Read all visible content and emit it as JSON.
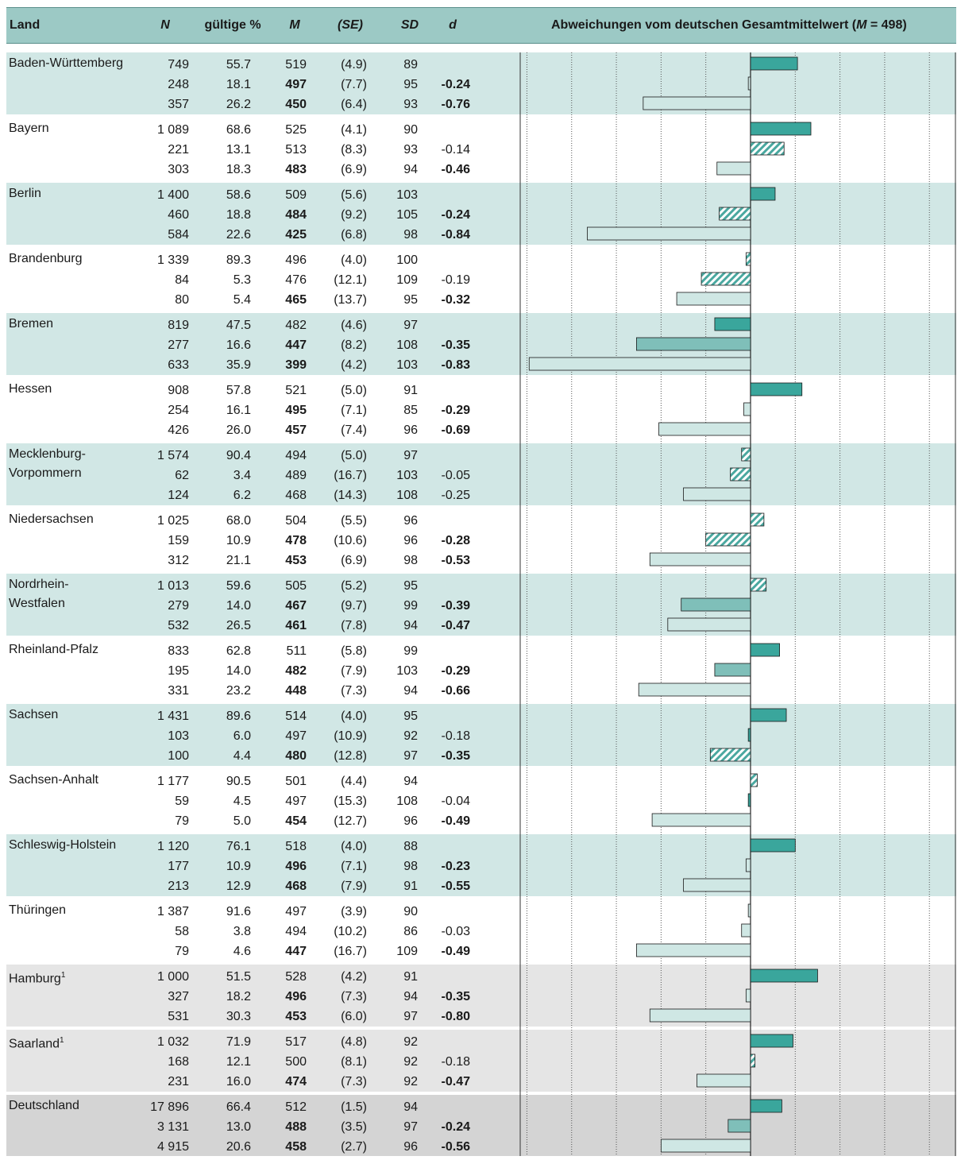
{
  "header": {
    "land": "Land",
    "n": "N",
    "gueltige": "gültige %",
    "m": "M",
    "se": "(SE)",
    "sd": "SD",
    "d": "d",
    "chart_title_pre": "Abweichungen vom deutschen Gesamtmittelwert (",
    "chart_title_m": "M",
    "chart_title_post": " = 498)"
  },
  "colors": {
    "header_bg": "#9cc9c5",
    "band_teal": "#d1e7e5",
    "band_gray": "#e5e5e5",
    "band_dark": "#d4d4d4",
    "bar_dark": "#3aa69c",
    "bar_mid": "#7fbfb9",
    "bar_light": "#cfe7e4",
    "bar_hatch": "#4aa8a0"
  },
  "rows": [
    {
      "land": "Baden-Württemberg",
      "footnote": "",
      "band": "teal",
      "entries": [
        {
          "n": "749",
          "pct": "55.7",
          "m": "519",
          "m_bold": false,
          "se": "(4.9)",
          "sd": "89",
          "d": "",
          "d_bold": false
        },
        {
          "n": "248",
          "pct": "18.1",
          "m": "497",
          "m_bold": true,
          "se": "(7.7)",
          "sd": "95",
          "d": "-0.24",
          "d_bold": true
        },
        {
          "n": "357",
          "pct": "26.2",
          "m": "450",
          "m_bold": true,
          "se": "(6.4)",
          "sd": "93",
          "d": "-0.76",
          "d_bold": true
        }
      ]
    },
    {
      "land": "Bayern",
      "footnote": "",
      "band": "white",
      "entries": [
        {
          "n": "1 089",
          "pct": "68.6",
          "m": "525",
          "m_bold": false,
          "se": "(4.1)",
          "sd": "90",
          "d": "",
          "d_bold": false
        },
        {
          "n": "221",
          "pct": "13.1",
          "m": "513",
          "m_bold": false,
          "se": "(8.3)",
          "sd": "93",
          "d": "-0.14",
          "d_bold": false
        },
        {
          "n": "303",
          "pct": "18.3",
          "m": "483",
          "m_bold": true,
          "se": "(6.9)",
          "sd": "94",
          "d": "-0.46",
          "d_bold": true
        }
      ]
    },
    {
      "land": "Berlin",
      "footnote": "",
      "band": "teal",
      "entries": [
        {
          "n": "1 400",
          "pct": "58.6",
          "m": "509",
          "m_bold": false,
          "se": "(5.6)",
          "sd": "103",
          "d": "",
          "d_bold": false
        },
        {
          "n": "460",
          "pct": "18.8",
          "m": "484",
          "m_bold": true,
          "se": "(9.2)",
          "sd": "105",
          "d": "-0.24",
          "d_bold": true
        },
        {
          "n": "584",
          "pct": "22.6",
          "m": "425",
          "m_bold": true,
          "se": "(6.8)",
          "sd": "98",
          "d": "-0.84",
          "d_bold": true
        }
      ]
    },
    {
      "land": "Brandenburg",
      "footnote": "",
      "band": "white",
      "entries": [
        {
          "n": "1 339",
          "pct": "89.3",
          "m": "496",
          "m_bold": false,
          "se": "(4.0)",
          "sd": "100",
          "d": "",
          "d_bold": false
        },
        {
          "n": "84",
          "pct": "5.3",
          "m": "476",
          "m_bold": false,
          "se": "(12.1)",
          "sd": "109",
          "d": "-0.19",
          "d_bold": false
        },
        {
          "n": "80",
          "pct": "5.4",
          "m": "465",
          "m_bold": true,
          "se": "(13.7)",
          "sd": "95",
          "d": "-0.32",
          "d_bold": true
        }
      ]
    },
    {
      "land": "Bremen",
      "footnote": "",
      "band": "teal",
      "entries": [
        {
          "n": "819",
          "pct": "47.5",
          "m": "482",
          "m_bold": false,
          "se": "(4.6)",
          "sd": "97",
          "d": "",
          "d_bold": false
        },
        {
          "n": "277",
          "pct": "16.6",
          "m": "447",
          "m_bold": true,
          "se": "(8.2)",
          "sd": "108",
          "d": "-0.35",
          "d_bold": true
        },
        {
          "n": "633",
          "pct": "35.9",
          "m": "399",
          "m_bold": true,
          "se": "(4.2)",
          "sd": "103",
          "d": "-0.83",
          "d_bold": true
        }
      ]
    },
    {
      "land": "Hessen",
      "footnote": "",
      "band": "white",
      "entries": [
        {
          "n": "908",
          "pct": "57.8",
          "m": "521",
          "m_bold": false,
          "se": "(5.0)",
          "sd": "91",
          "d": "",
          "d_bold": false
        },
        {
          "n": "254",
          "pct": "16.1",
          "m": "495",
          "m_bold": true,
          "se": "(7.1)",
          "sd": "85",
          "d": "-0.29",
          "d_bold": true
        },
        {
          "n": "426",
          "pct": "26.0",
          "m": "457",
          "m_bold": true,
          "se": "(7.4)",
          "sd": "96",
          "d": "-0.69",
          "d_bold": true
        }
      ]
    },
    {
      "land": "Mecklenburg-Vorpommern",
      "land_line1": "Mecklenburg-",
      "land_line2": "Vorpommern",
      "footnote": "",
      "band": "teal",
      "entries": [
        {
          "n": "1 574",
          "pct": "90.4",
          "m": "494",
          "m_bold": false,
          "se": "(5.0)",
          "sd": "97",
          "d": "",
          "d_bold": false
        },
        {
          "n": "62",
          "pct": "3.4",
          "m": "489",
          "m_bold": false,
          "se": "(16.7)",
          "sd": "103",
          "d": "-0.05",
          "d_bold": false
        },
        {
          "n": "124",
          "pct": "6.2",
          "m": "468",
          "m_bold": false,
          "se": "(14.3)",
          "sd": "108",
          "d": "-0.25",
          "d_bold": false
        }
      ]
    },
    {
      "land": "Niedersachsen",
      "footnote": "",
      "band": "white",
      "entries": [
        {
          "n": "1 025",
          "pct": "68.0",
          "m": "504",
          "m_bold": false,
          "se": "(5.5)",
          "sd": "96",
          "d": "",
          "d_bold": false
        },
        {
          "n": "159",
          "pct": "10.9",
          "m": "478",
          "m_bold": true,
          "se": "(10.6)",
          "sd": "96",
          "d": "-0.28",
          "d_bold": true
        },
        {
          "n": "312",
          "pct": "21.1",
          "m": "453",
          "m_bold": true,
          "se": "(6.9)",
          "sd": "98",
          "d": "-0.53",
          "d_bold": true
        }
      ]
    },
    {
      "land": "Nordrhein-Westfalen",
      "land_line1": "Nordrhein-",
      "land_line2": "Westfalen",
      "footnote": "",
      "band": "teal",
      "entries": [
        {
          "n": "1 013",
          "pct": "59.6",
          "m": "505",
          "m_bold": false,
          "se": "(5.2)",
          "sd": "95",
          "d": "",
          "d_bold": false
        },
        {
          "n": "279",
          "pct": "14.0",
          "m": "467",
          "m_bold": true,
          "se": "(9.7)",
          "sd": "99",
          "d": "-0.39",
          "d_bold": true
        },
        {
          "n": "532",
          "pct": "26.5",
          "m": "461",
          "m_bold": true,
          "se": "(7.8)",
          "sd": "94",
          "d": "-0.47",
          "d_bold": true
        }
      ]
    },
    {
      "land": "Rheinland-Pfalz",
      "footnote": "",
      "band": "white",
      "entries": [
        {
          "n": "833",
          "pct": "62.8",
          "m": "511",
          "m_bold": false,
          "se": "(5.8)",
          "sd": "99",
          "d": "",
          "d_bold": false
        },
        {
          "n": "195",
          "pct": "14.0",
          "m": "482",
          "m_bold": true,
          "se": "(7.9)",
          "sd": "103",
          "d": "-0.29",
          "d_bold": true
        },
        {
          "n": "331",
          "pct": "23.2",
          "m": "448",
          "m_bold": true,
          "se": "(7.3)",
          "sd": "94",
          "d": "-0.66",
          "d_bold": true
        }
      ]
    },
    {
      "land": "Sachsen",
      "footnote": "",
      "band": "teal",
      "entries": [
        {
          "n": "1 431",
          "pct": "89.6",
          "m": "514",
          "m_bold": false,
          "se": "(4.0)",
          "sd": "95",
          "d": "",
          "d_bold": false
        },
        {
          "n": "103",
          "pct": "6.0",
          "m": "497",
          "m_bold": false,
          "se": "(10.9)",
          "sd": "92",
          "d": "-0.18",
          "d_bold": false
        },
        {
          "n": "100",
          "pct": "4.4",
          "m": "480",
          "m_bold": true,
          "se": "(12.8)",
          "sd": "97",
          "d": "-0.35",
          "d_bold": true
        }
      ]
    },
    {
      "land": "Sachsen-Anhalt",
      "footnote": "",
      "band": "white",
      "entries": [
        {
          "n": "1 177",
          "pct": "90.5",
          "m": "501",
          "m_bold": false,
          "se": "(4.4)",
          "sd": "94",
          "d": "",
          "d_bold": false
        },
        {
          "n": "59",
          "pct": "4.5",
          "m": "497",
          "m_bold": false,
          "se": "(15.3)",
          "sd": "108",
          "d": "-0.04",
          "d_bold": false
        },
        {
          "n": "79",
          "pct": "5.0",
          "m": "454",
          "m_bold": true,
          "se": "(12.7)",
          "sd": "96",
          "d": "-0.49",
          "d_bold": true
        }
      ]
    },
    {
      "land": "Schleswig-Holstein",
      "footnote": "",
      "band": "teal",
      "entries": [
        {
          "n": "1 120",
          "pct": "76.1",
          "m": "518",
          "m_bold": false,
          "se": "(4.0)",
          "sd": "88",
          "d": "",
          "d_bold": false
        },
        {
          "n": "177",
          "pct": "10.9",
          "m": "496",
          "m_bold": true,
          "se": "(7.1)",
          "sd": "98",
          "d": "-0.23",
          "d_bold": true
        },
        {
          "n": "213",
          "pct": "12.9",
          "m": "468",
          "m_bold": true,
          "se": "(7.9)",
          "sd": "91",
          "d": "-0.55",
          "d_bold": true
        }
      ]
    },
    {
      "land": "Thüringen",
      "footnote": "",
      "band": "white",
      "entries": [
        {
          "n": "1 387",
          "pct": "91.6",
          "m": "497",
          "m_bold": false,
          "se": "(3.9)",
          "sd": "90",
          "d": "",
          "d_bold": false
        },
        {
          "n": "58",
          "pct": "3.8",
          "m": "494",
          "m_bold": false,
          "se": "(10.2)",
          "sd": "86",
          "d": "-0.03",
          "d_bold": false
        },
        {
          "n": "79",
          "pct": "4.6",
          "m": "447",
          "m_bold": true,
          "se": "(16.7)",
          "sd": "109",
          "d": "-0.49",
          "d_bold": true
        }
      ]
    },
    {
      "land": "Hamburg",
      "footnote": "1",
      "band": "gray",
      "entries": [
        {
          "n": "1 000",
          "pct": "51.5",
          "m": "528",
          "m_bold": false,
          "se": "(4.2)",
          "sd": "91",
          "d": "",
          "d_bold": false
        },
        {
          "n": "327",
          "pct": "18.2",
          "m": "496",
          "m_bold": true,
          "se": "(7.3)",
          "sd": "94",
          "d": "-0.35",
          "d_bold": true
        },
        {
          "n": "531",
          "pct": "30.3",
          "m": "453",
          "m_bold": true,
          "se": "(6.0)",
          "sd": "97",
          "d": "-0.80",
          "d_bold": true
        }
      ]
    },
    {
      "land": "Saarland",
      "footnote": "1",
      "band": "gray",
      "entries": [
        {
          "n": "1 032",
          "pct": "71.9",
          "m": "517",
          "m_bold": false,
          "se": "(4.8)",
          "sd": "92",
          "d": "",
          "d_bold": false
        },
        {
          "n": "168",
          "pct": "12.1",
          "m": "500",
          "m_bold": false,
          "se": "(8.1)",
          "sd": "92",
          "d": "-0.18",
          "d_bold": false
        },
        {
          "n": "231",
          "pct": "16.0",
          "m": "474",
          "m_bold": true,
          "se": "(7.3)",
          "sd": "92",
          "d": "-0.47",
          "d_bold": true
        }
      ]
    },
    {
      "land": "Deutschland",
      "footnote": "",
      "band": "dark",
      "entries": [
        {
          "n": "17 896",
          "pct": "66.4",
          "m": "512",
          "m_bold": false,
          "se": "(1.5)",
          "sd": "94",
          "d": "",
          "d_bold": false
        },
        {
          "n": "3 131",
          "pct": "13.0",
          "m": "488",
          "m_bold": true,
          "se": "(3.5)",
          "sd": "97",
          "d": "-0.24",
          "d_bold": true
        },
        {
          "n": "4 915",
          "pct": "20.6",
          "m": "458",
          "m_bold": true,
          "se": "(2.7)",
          "sd": "96",
          "d": "-0.56",
          "d_bold": true
        }
      ]
    }
  ],
  "chart_data": {
    "type": "bar",
    "orientation": "horizontal",
    "title": "Abweichungen vom deutschen Gesamtmittelwert (M = 498)",
    "reference_value": 498,
    "xlim": [
      395,
      590
    ],
    "grid": true,
    "bar_values": [
      [
        519,
        497,
        450
      ],
      [
        525,
        513,
        483
      ],
      [
        509,
        484,
        425
      ],
      [
        496,
        476,
        465
      ],
      [
        482,
        447,
        399
      ],
      [
        521,
        495,
        457
      ],
      [
        494,
        489,
        468
      ],
      [
        504,
        478,
        453
      ],
      [
        505,
        467,
        461
      ],
      [
        511,
        482,
        448
      ],
      [
        514,
        497,
        480
      ],
      [
        501,
        497,
        454
      ],
      [
        518,
        496,
        468
      ],
      [
        497,
        494,
        447
      ],
      [
        528,
        496,
        453
      ],
      [
        517,
        500,
        474
      ],
      [
        512,
        488,
        458
      ]
    ],
    "bar_styles": [
      [
        "dark",
        "light",
        "light"
      ],
      [
        "dark",
        "hatch",
        "light"
      ],
      [
        "dark",
        "hatch",
        "light"
      ],
      [
        "hatch",
        "hatch",
        "light"
      ],
      [
        "dark",
        "mid",
        "light"
      ],
      [
        "dark",
        "light",
        "light"
      ],
      [
        "hatch",
        "hatch",
        "light"
      ],
      [
        "hatch",
        "hatch",
        "light"
      ],
      [
        "hatch",
        "mid",
        "light"
      ],
      [
        "dark",
        "mid",
        "light"
      ],
      [
        "dark",
        "dark",
        "hatch"
      ],
      [
        "hatch",
        "dark",
        "light"
      ],
      [
        "dark",
        "light",
        "light"
      ],
      [
        "light",
        "light",
        "light"
      ],
      [
        "dark",
        "light",
        "light"
      ],
      [
        "dark",
        "hatch",
        "light"
      ],
      [
        "dark",
        "mid",
        "light"
      ]
    ]
  }
}
